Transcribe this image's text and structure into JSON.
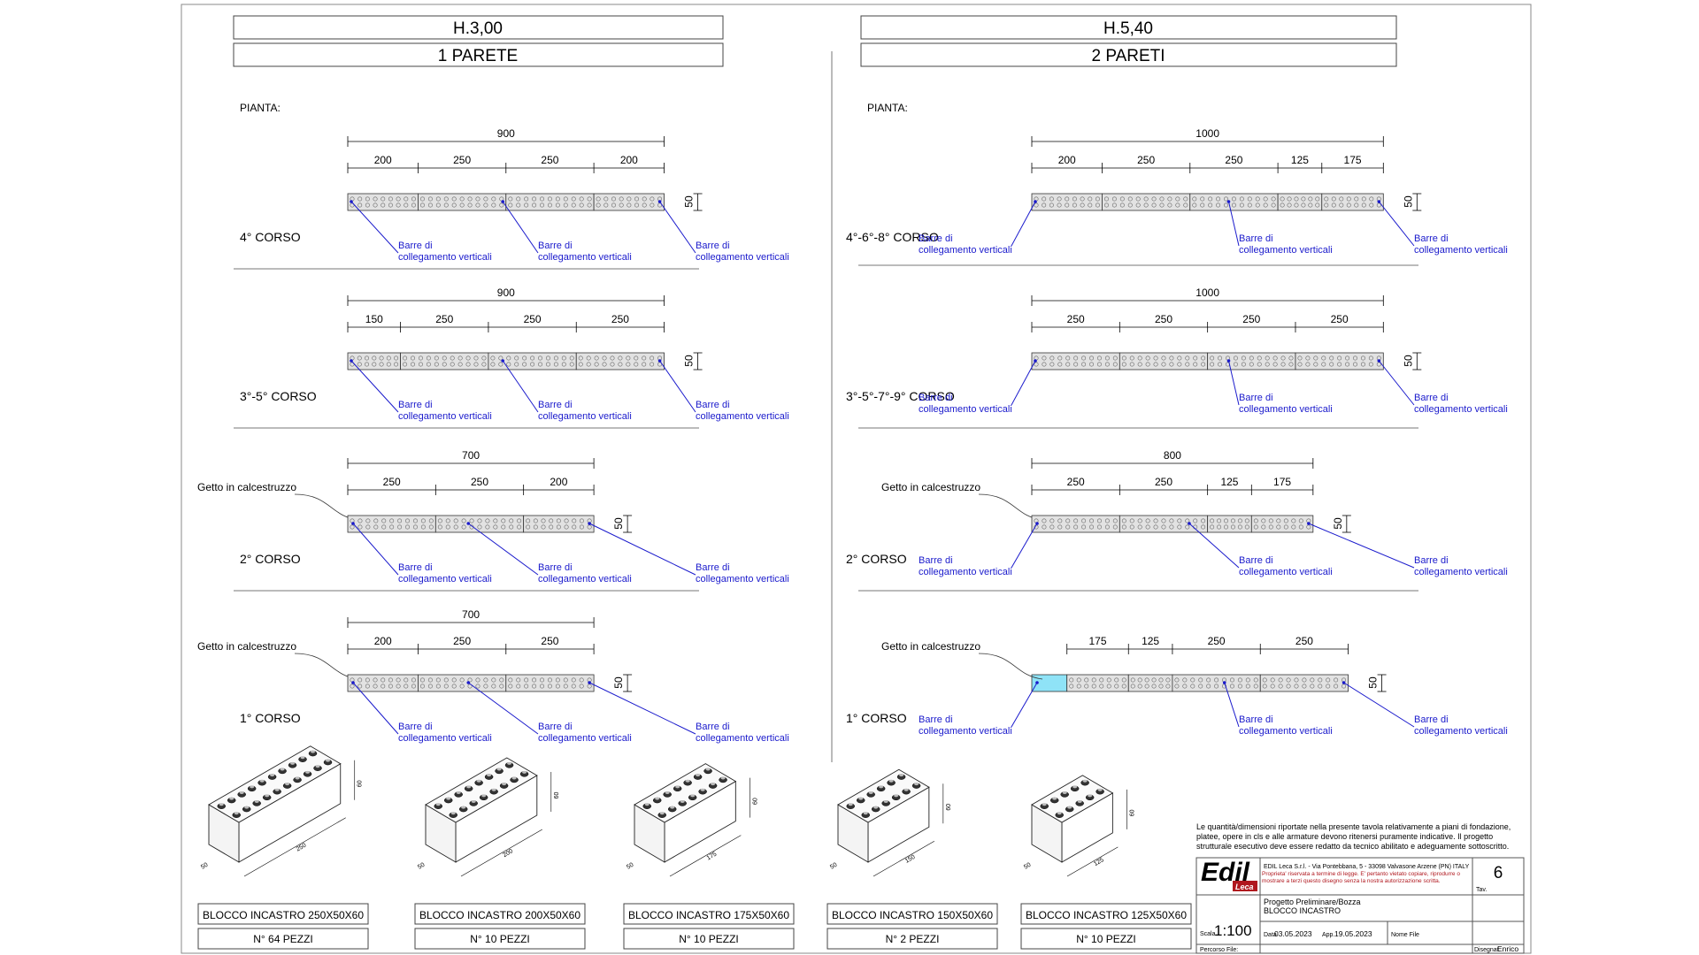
{
  "left": {
    "height_label": "H.3,00",
    "walls_label": "1 PARETE",
    "plan_label": "PIANTA:",
    "rows": [
      {
        "course": "4° CORSO",
        "total": "900",
        "segs": [
          "200",
          "250",
          "250",
          "200"
        ],
        "concrete": false
      },
      {
        "course": "3°-5° CORSO",
        "total": "900",
        "segs": [
          "150",
          "250",
          "250",
          "250"
        ],
        "concrete": false
      },
      {
        "course": "2° CORSO",
        "total": "700",
        "segs": [
          "250",
          "250",
          "200"
        ],
        "concrete": true
      },
      {
        "course": "1° CORSO",
        "total": "700",
        "segs": [
          "200",
          "250",
          "250"
        ],
        "concrete": true
      }
    ]
  },
  "right": {
    "height_label": "H.5,40",
    "walls_label": "2 PARETI",
    "plan_label": "PIANTA:",
    "rows": [
      {
        "course": "4°-6°-8° CORSO",
        "total": "1000",
        "segs": [
          "200",
          "250",
          "250",
          "125",
          "175"
        ],
        "concrete": false
      },
      {
        "course": "3°-5°-7°-9° CORSO",
        "total": "1000",
        "segs": [
          "250",
          "250",
          "250",
          "250"
        ],
        "concrete": false
      },
      {
        "course": "2° CORSO",
        "total": "800",
        "segs": [
          "250",
          "250",
          "125",
          "175"
        ],
        "concrete": true
      },
      {
        "course": "1° CORSO",
        "total": "",
        "segs": [
          "175",
          "125",
          "250",
          "250"
        ],
        "concrete": true
      }
    ]
  },
  "labels": {
    "bar_line1": "Barre di",
    "bar_line2": "collegamento verticali",
    "concrete": "Getto in calcestruzzo",
    "thickness": "50"
  },
  "blocks": [
    {
      "name": "BLOCCO INCASTRO 250X50X60",
      "pieces": "N° 64 PEZZI",
      "len": "250",
      "w": "50",
      "h": "60"
    },
    {
      "name": "BLOCCO INCASTRO 200X50X60",
      "pieces": "N° 10 PEZZI",
      "len": "200",
      "w": "50",
      "h": "60"
    },
    {
      "name": "BLOCCO INCASTRO 175X50X60",
      "pieces": "N° 10 PEZZI",
      "len": "175",
      "w": "50",
      "h": "60"
    },
    {
      "name": "BLOCCO INCASTRO 150X50X60",
      "pieces": "N° 2 PEZZI",
      "len": "150",
      "w": "50",
      "h": "60"
    },
    {
      "name": "BLOCCO INCASTRO 125X50X60",
      "pieces": "N° 10 PEZZI",
      "len": "125",
      "w": "50",
      "h": "60"
    }
  ],
  "titleblock": {
    "note": "Le quantità/dimensioni riportate nella presente tavola relativamente a piani di fondazione, platee, opere in cls e alle armature devono ritenersi puramente indicative. Il progetto strutturale esecutivo deve essere redatto da tecnico abilitato e adeguamente sottoscritto.",
    "logo_main": "Edil",
    "logo_sub": "Leca",
    "company": "EDIL Leca S.r.l. - Via Pontebbana, 5 - 33098 Valvasone Arzene (PN) ITALY",
    "rights": "Proprieta' riservata a termine di legge. E' pertanto vietato copiare, riprodurre o mostrare a terzi questo disegno senza la nostra autorizzazione scritta.",
    "sheet_no": "6",
    "tav_label": "Tav.",
    "project1": "Progetto Preliminare/Bozza",
    "project2": "BLOCCO INCASTRO",
    "scale_label": "Scala",
    "scale": "1:100",
    "date_label": "Data",
    "date": "03.05.2023",
    "app_label": "App.",
    "app_date": "19.05.2023",
    "file_label": "Nome File",
    "path_label": "Percorso File:",
    "designer_label": "Disegnat.",
    "designer": "Enrico"
  },
  "colors": {
    "bar_line": "#1a1acc",
    "concrete_fill": "#8fe3f7",
    "block_fill": "#e2e2e2"
  }
}
